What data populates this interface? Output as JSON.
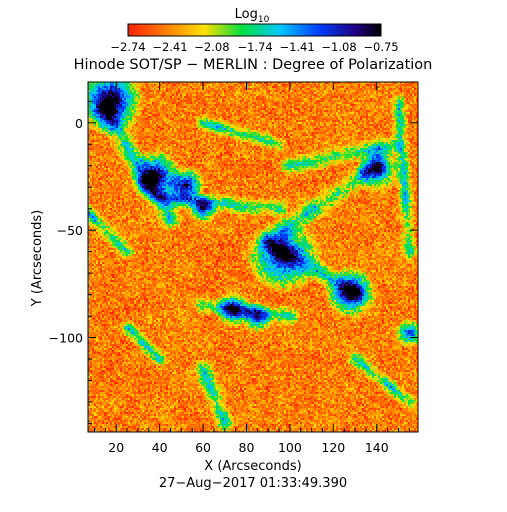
{
  "chart_data": {
    "type": "heatmap",
    "title": "Hinode SOT/SP − MERLIN : Degree of Polarization",
    "xlabel": "X (Arcseconds)",
    "ylabel": "Y (Arcseconds)",
    "timestamp": "27−Aug−2017 01:33:49.390",
    "colorbar": {
      "label_base": "Log",
      "label_sub": "10",
      "range": [
        -2.74,
        -0.75
      ],
      "ticks": [
        -2.74,
        -2.41,
        -2.08,
        -1.74,
        -1.41,
        -1.08,
        -0.75
      ],
      "tick_labels": [
        "−2.74",
        "−2.41",
        "−2.08",
        "−1.74",
        "−1.41",
        "−1.08",
        "−0.75"
      ],
      "colormap": [
        "#ff2000",
        "#ff8000",
        "#ffe000",
        "#00e040",
        "#00c8ff",
        "#0040ff",
        "#200080",
        "#000000"
      ]
    },
    "xlim": [
      7,
      159
    ],
    "ylim": [
      -144,
      19
    ],
    "x_ticks": [
      20,
      40,
      60,
      80,
      100,
      120,
      140
    ],
    "x_tick_labels": [
      "20",
      "40",
      "60",
      "80",
      "100",
      "120",
      "140"
    ],
    "y_ticks": [
      0,
      -50,
      -100
    ],
    "y_tick_labels": [
      "0",
      "−50",
      "−100"
    ],
    "strong_polarization_regions": [
      {
        "x": 17,
        "y": 10,
        "radius": 9,
        "level": 0.95
      },
      {
        "x": 38,
        "y": -25,
        "radius": 7,
        "level": 0.9
      },
      {
        "x": 52,
        "y": -29,
        "radius": 5,
        "level": 0.85
      },
      {
        "x": 60,
        "y": -40,
        "radius": 4,
        "level": 0.7
      },
      {
        "x": 97,
        "y": -62,
        "radius": 10,
        "level": 0.8
      },
      {
        "x": 128,
        "y": -79,
        "radius": 7,
        "level": 0.85
      },
      {
        "x": 74,
        "y": -87,
        "radius": 5,
        "level": 0.7
      },
      {
        "x": 85,
        "y": -91,
        "radius": 4,
        "level": 0.65
      },
      {
        "x": 141,
        "y": -22,
        "radius": 6,
        "level": 0.65
      },
      {
        "x": 155,
        "y": -98,
        "radius": 4,
        "level": 0.7
      }
    ],
    "network_lanes": [
      {
        "x1": 15,
        "y1": 5,
        "x2": 45,
        "y2": -45,
        "width": 6
      },
      {
        "x1": 40,
        "y1": -35,
        "x2": 95,
        "y2": -40,
        "width": 5
      },
      {
        "x1": 97,
        "y1": -50,
        "x2": 140,
        "y2": -20,
        "width": 6
      },
      {
        "x1": 90,
        "y1": -55,
        "x2": 130,
        "y2": -80,
        "width": 6
      },
      {
        "x1": 60,
        "y1": -85,
        "x2": 100,
        "y2": -90,
        "width": 5
      },
      {
        "x1": 60,
        "y1": -115,
        "x2": 70,
        "y2": -140,
        "width": 5
      },
      {
        "x1": 100,
        "y1": -20,
        "x2": 150,
        "y2": -10,
        "width": 5
      },
      {
        "x1": 60,
        "y1": 0,
        "x2": 95,
        "y2": -10,
        "width": 4
      },
      {
        "x1": 25,
        "y1": -95,
        "x2": 40,
        "y2": -110,
        "width": 4
      },
      {
        "x1": 150,
        "y1": 10,
        "x2": 155,
        "y2": -60,
        "width": 4
      },
      {
        "x1": 5,
        "y1": -40,
        "x2": 25,
        "y2": -60,
        "width": 4
      },
      {
        "x1": 130,
        "y1": -110,
        "x2": 155,
        "y2": -130,
        "width": 4
      }
    ]
  }
}
